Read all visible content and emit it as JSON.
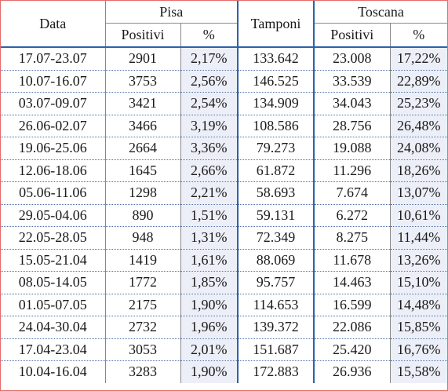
{
  "header": {
    "date": "Data",
    "pisa": "Pisa",
    "tamponi": "Tamponi",
    "toscana": "Toscana",
    "positivi": "Positivi",
    "pct": "%"
  },
  "rows": [
    {
      "date": "17.07-23.07",
      "pisa_pos": "2901",
      "pisa_pct": "2,17%",
      "tamponi": "133.642",
      "tos_pos": "23.008",
      "tos_pct": "17,22%"
    },
    {
      "date": "10.07-16.07",
      "pisa_pos": "3753",
      "pisa_pct": "2,56%",
      "tamponi": "146.525",
      "tos_pos": "33.539",
      "tos_pct": "22,89%"
    },
    {
      "date": "03.07-09.07",
      "pisa_pos": "3421",
      "pisa_pct": "2,54%",
      "tamponi": "134.909",
      "tos_pos": "34.043",
      "tos_pct": "25,23%"
    },
    {
      "date": "26.06-02.07",
      "pisa_pos": "3466",
      "pisa_pct": "3,19%",
      "tamponi": "108.586",
      "tos_pos": "28.756",
      "tos_pct": "26,48%"
    },
    {
      "date": "19.06-25.06",
      "pisa_pos": "2664",
      "pisa_pct": "3,36%",
      "tamponi": "79.273",
      "tos_pos": "19.088",
      "tos_pct": "24,08%"
    },
    {
      "date": "12.06-18.06",
      "pisa_pos": "1645",
      "pisa_pct": "2,66%",
      "tamponi": "61.872",
      "tos_pos": "11.296",
      "tos_pct": "18,26%"
    },
    {
      "date": "05.06-11.06",
      "pisa_pos": "1298",
      "pisa_pct": "2,21%",
      "tamponi": "58.693",
      "tos_pos": "7.674",
      "tos_pct": "13,07%"
    },
    {
      "date": "29.05-04.06",
      "pisa_pos": "890",
      "pisa_pct": "1,51%",
      "tamponi": "59.131",
      "tos_pos": "6.272",
      "tos_pct": "10,61%"
    },
    {
      "date": "22.05-28.05",
      "pisa_pos": "948",
      "pisa_pct": "1,31%",
      "tamponi": "72.349",
      "tos_pos": "8.275",
      "tos_pct": "11,44%"
    },
    {
      "date": "15.05-21.04",
      "pisa_pos": "1419",
      "pisa_pct": "1,61%",
      "tamponi": "88.069",
      "tos_pos": "11.678",
      "tos_pct": "13,26%"
    },
    {
      "date": "08.05-14.05",
      "pisa_pos": "1772",
      "pisa_pct": "1,85%",
      "tamponi": "95.757",
      "tos_pos": "14.463",
      "tos_pct": "15,10%"
    },
    {
      "date": "01.05-07.05",
      "pisa_pos": "2175",
      "pisa_pct": "1,90%",
      "tamponi": "114.653",
      "tos_pos": "16.599",
      "tos_pct": "14,48%"
    },
    {
      "date": "24.04-30.04",
      "pisa_pos": "2732",
      "pisa_pct": "1,96%",
      "tamponi": "139.372",
      "tos_pos": "22.086",
      "tos_pct": "15,85%"
    },
    {
      "date": "17.04-23.04",
      "pisa_pos": "3053",
      "pisa_pct": "2,01%",
      "tamponi": "151.687",
      "tos_pos": "25.420",
      "tos_pct": "16,76%"
    },
    {
      "date": "10.04-16.04",
      "pisa_pos": "3283",
      "pisa_pct": "1,90%",
      "tamponi": "172.883",
      "tos_pos": "26.936",
      "tos_pct": "15,58%"
    }
  ],
  "colors": {
    "accent_border": "#2e62a8",
    "pct_background": "#eceff7",
    "frame": "#e46b6b"
  }
}
